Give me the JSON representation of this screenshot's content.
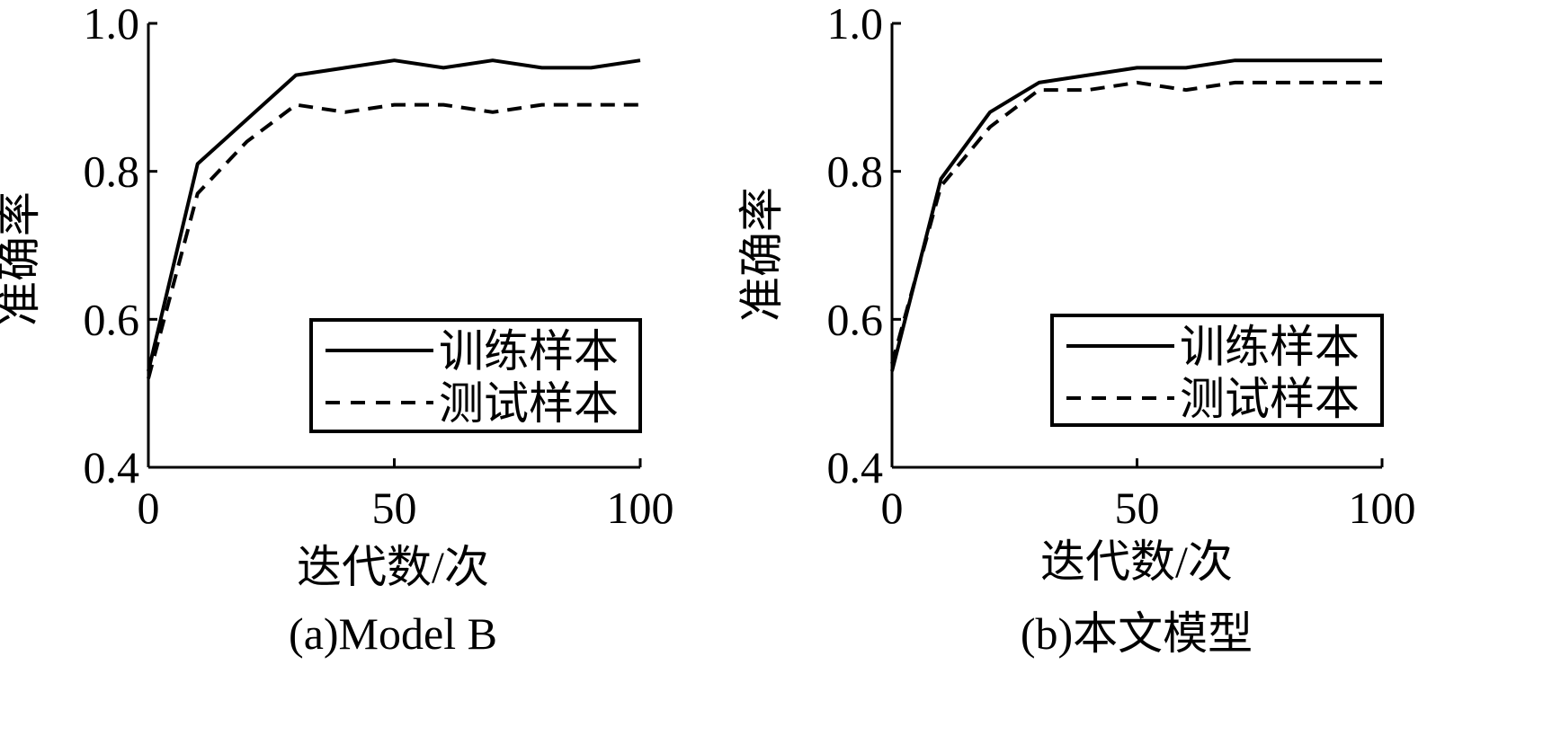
{
  "chart_data": [
    {
      "type": "line",
      "caption": "(a)Model B",
      "xlabel": "迭代数/次",
      "ylabel": "准确率",
      "xlim": [
        0,
        100
      ],
      "ylim": [
        0.4,
        1.0
      ],
      "xticks": [
        "0",
        "50",
        "100"
      ],
      "yticks": [
        "0.4",
        "0.6",
        "0.8",
        "1.0"
      ],
      "grid": false,
      "legend": "bottom-right",
      "series": [
        {
          "name": "训练样本",
          "style": "solid",
          "x": [
            0,
            10,
            20,
            30,
            40,
            50,
            60,
            70,
            80,
            90,
            100
          ],
          "y": [
            0.53,
            0.81,
            0.87,
            0.93,
            0.94,
            0.95,
            0.94,
            0.95,
            0.94,
            0.94,
            0.95
          ]
        },
        {
          "name": "测试样本",
          "style": "dashed",
          "x": [
            0,
            10,
            20,
            30,
            40,
            50,
            60,
            70,
            80,
            90,
            100
          ],
          "y": [
            0.52,
            0.77,
            0.84,
            0.89,
            0.88,
            0.89,
            0.89,
            0.88,
            0.89,
            0.89,
            0.89
          ]
        }
      ]
    },
    {
      "type": "line",
      "caption": "(b)本文模型",
      "xlabel": "迭代数/次",
      "ylabel": "准确率",
      "xlim": [
        0,
        100
      ],
      "ylim": [
        0.4,
        1.0
      ],
      "xticks": [
        "0",
        "50",
        "100"
      ],
      "yticks": [
        "0.4",
        "0.6",
        "0.8",
        "1.0"
      ],
      "grid": false,
      "legend": "bottom-right",
      "series": [
        {
          "name": "训练样本",
          "style": "solid",
          "x": [
            0,
            10,
            20,
            30,
            40,
            50,
            60,
            70,
            80,
            90,
            100
          ],
          "y": [
            0.53,
            0.79,
            0.88,
            0.92,
            0.93,
            0.94,
            0.94,
            0.95,
            0.95,
            0.95,
            0.95
          ]
        },
        {
          "name": "测试样本",
          "style": "dashed",
          "x": [
            0,
            10,
            20,
            30,
            40,
            50,
            60,
            70,
            80,
            90,
            100
          ],
          "y": [
            0.54,
            0.78,
            0.86,
            0.91,
            0.91,
            0.92,
            0.91,
            0.92,
            0.92,
            0.92,
            0.92
          ]
        }
      ]
    }
  ]
}
